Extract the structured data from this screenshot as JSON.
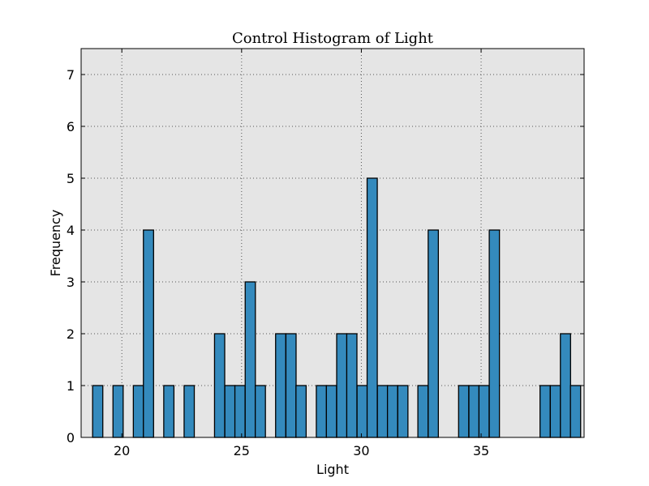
{
  "chart_data": {
    "type": "bar",
    "title": "Control Histogram of Light",
    "xlabel": "Light",
    "ylabel": "Frequency",
    "xlim": [
      18.3,
      39.3
    ],
    "ylim": [
      0,
      7.5
    ],
    "xticks": [
      20,
      25,
      30,
      35
    ],
    "yticks": [
      0,
      1,
      2,
      3,
      4,
      5,
      6,
      7
    ],
    "grid": true,
    "colors": {
      "bar_fill": "#348ABD",
      "bar_edge": "#000000",
      "plot_background": "#E5E5E5",
      "grid": "#555555"
    },
    "bin_width": 0.425,
    "bins": [
      {
        "x0": 18.78,
        "count": 1
      },
      {
        "x0": 19.63,
        "count": 1
      },
      {
        "x0": 20.48,
        "count": 1
      },
      {
        "x0": 20.9,
        "count": 4
      },
      {
        "x0": 21.75,
        "count": 1
      },
      {
        "x0": 22.6,
        "count": 1
      },
      {
        "x0": 23.87,
        "count": 2
      },
      {
        "x0": 24.3,
        "count": 1
      },
      {
        "x0": 24.72,
        "count": 1
      },
      {
        "x0": 25.15,
        "count": 3
      },
      {
        "x0": 25.57,
        "count": 1
      },
      {
        "x0": 26.42,
        "count": 2
      },
      {
        "x0": 26.85,
        "count": 2
      },
      {
        "x0": 27.27,
        "count": 1
      },
      {
        "x0": 28.12,
        "count": 1
      },
      {
        "x0": 28.54,
        "count": 1
      },
      {
        "x0": 28.97,
        "count": 2
      },
      {
        "x0": 29.39,
        "count": 2
      },
      {
        "x0": 29.82,
        "count": 1
      },
      {
        "x0": 30.24,
        "count": 5
      },
      {
        "x0": 30.67,
        "count": 1
      },
      {
        "x0": 31.09,
        "count": 1
      },
      {
        "x0": 31.52,
        "count": 1
      },
      {
        "x0": 32.36,
        "count": 1
      },
      {
        "x0": 32.79,
        "count": 4
      },
      {
        "x0": 34.06,
        "count": 1
      },
      {
        "x0": 34.49,
        "count": 1
      },
      {
        "x0": 34.91,
        "count": 1
      },
      {
        "x0": 35.34,
        "count": 4
      },
      {
        "x0": 37.46,
        "count": 1
      },
      {
        "x0": 37.89,
        "count": 1
      },
      {
        "x0": 38.31,
        "count": 2
      },
      {
        "x0": 38.73,
        "count": 1
      }
    ]
  }
}
